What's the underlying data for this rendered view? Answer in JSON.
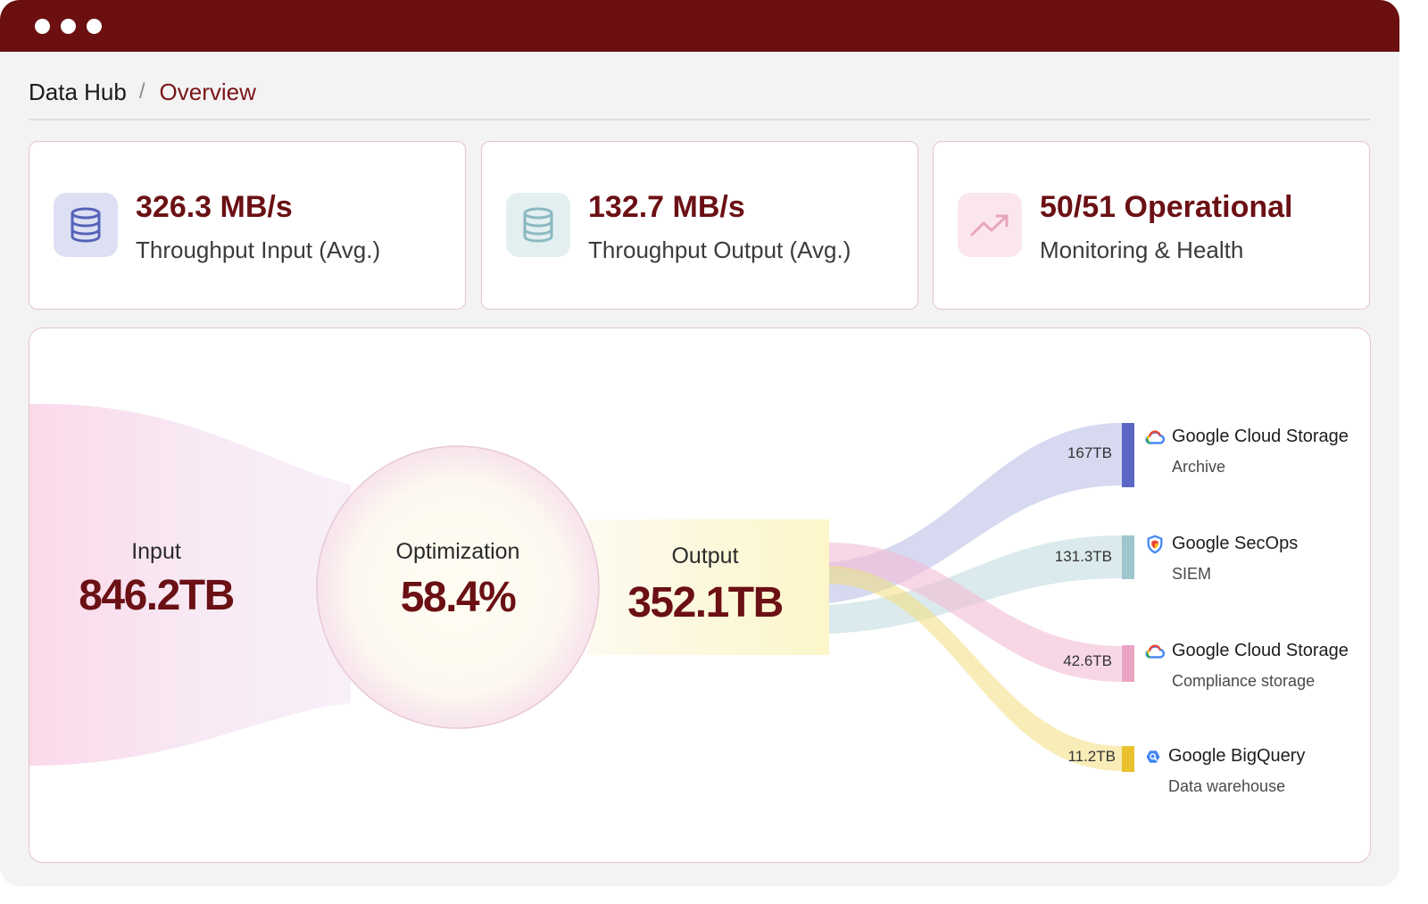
{
  "window": {
    "breadcrumb": {
      "root": "Data Hub",
      "separator": "/",
      "current": "Overview"
    }
  },
  "stats": [
    {
      "value": "326.3 MB/s",
      "label": "Throughput Input (Avg.)",
      "icon": "database-icon",
      "icon_bg": "#dde0f3",
      "icon_color": "#5563b9"
    },
    {
      "value": "132.7 MB/s",
      "label": "Throughput Output (Avg.)",
      "icon": "database-icon",
      "icon_bg": "#e3eff0",
      "icon_color": "#8ab9c1"
    },
    {
      "value": "50/51 Operational",
      "label": "Monitoring & Health",
      "icon": "trend-up-icon",
      "icon_bg": "#fbe6ee",
      "icon_color": "#e7a5bd"
    }
  ],
  "flow": {
    "input": {
      "label": "Input",
      "value": "846.2TB"
    },
    "optimization": {
      "label": "Optimization",
      "value": "58.4%"
    },
    "output": {
      "label": "Output",
      "value": "352.1TB"
    },
    "destinations": [
      {
        "amount": "167TB",
        "name": "Google Cloud Storage",
        "sub": "Archive",
        "icon": "google-cloud-icon",
        "color": "#5a67c4"
      },
      {
        "amount": "131.3TB",
        "name": "Google SecOps",
        "sub": "SIEM",
        "icon": "google-secops-shield-icon",
        "color": "#9fc6cd"
      },
      {
        "amount": "42.6TB",
        "name": "Google Cloud Storage",
        "sub": "Compliance storage",
        "icon": "google-cloud-icon",
        "color": "#eaa3c3"
      },
      {
        "amount": "11.2TB",
        "name": "Google BigQuery",
        "sub": "Data warehouse",
        "icon": "google-bigquery-icon",
        "color": "#e9c12e"
      }
    ]
  }
}
